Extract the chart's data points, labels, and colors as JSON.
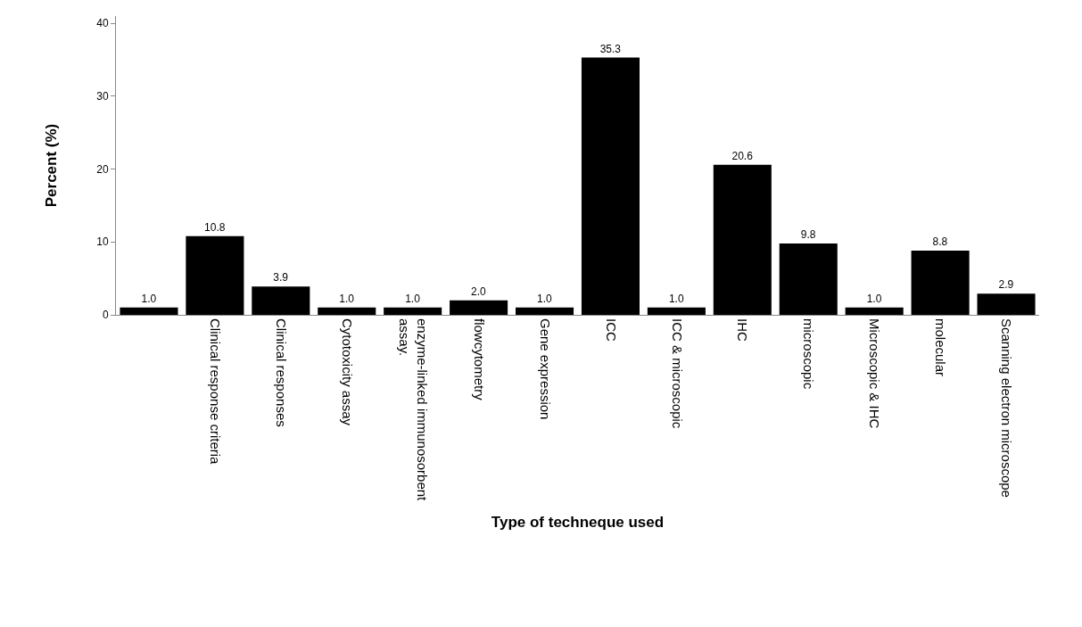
{
  "chart_data": {
    "type": "bar",
    "xlabel": "Type of techneque used",
    "ylabel": "Percent (%)",
    "categories": [
      null,
      "Clinical response criteria",
      "Clinical responses",
      "Cytotoxicity assay",
      "enzyme-linked immunosorbent assay.",
      "flowcytometry",
      "Gene expression",
      "ICC",
      "ICC & microscopic",
      "IHC",
      "microscopic",
      "Microscopic & IHC",
      "molecular",
      "Scanning electron microscope"
    ],
    "values": [
      1.0,
      10.8,
      3.9,
      1.0,
      1.0,
      2.0,
      1.0,
      35.3,
      1.0,
      20.6,
      9.8,
      1.0,
      8.8,
      2.9
    ],
    "value_labels": [
      "1.0",
      "10.8",
      "3.9",
      "1.0",
      "1.0",
      "2.0",
      "1.0",
      "35.3",
      "1.0",
      "20.6",
      "9.8",
      "1.0",
      "8.8",
      "2.9"
    ],
    "color": "#000000",
    "ylim": [
      0,
      41
    ],
    "yticks": [
      0,
      10,
      20,
      30,
      40
    ],
    "grid": false
  }
}
